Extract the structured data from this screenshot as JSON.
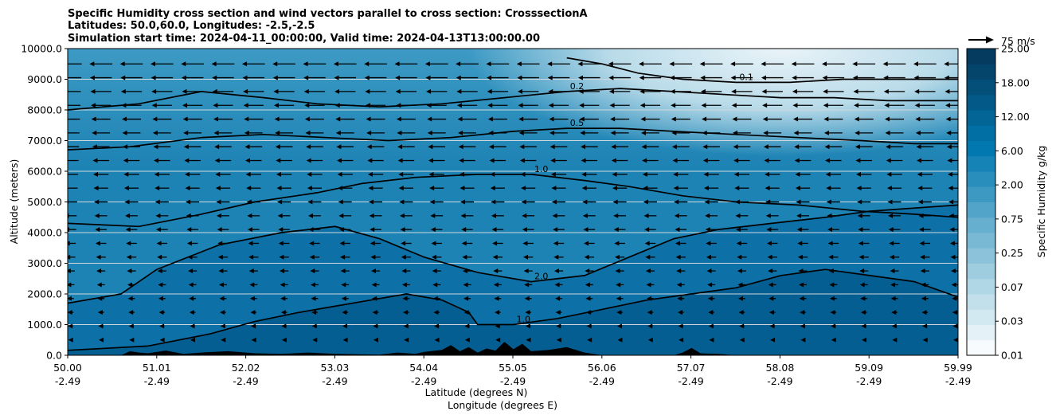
{
  "chart_data": {
    "type": "contour",
    "title_lines": [
      "Specific Humidity cross section and wind vectors parallel to cross section: CrosssectionA",
      "Latitudes: 50.0,60.0, Longitudes: -2.5,-2.5",
      "Simulation start time: 2024-04-11_00:00:00, Valid time: 2024-04-13T13:00:00.00"
    ],
    "xlabel_lines": [
      "Latitude (degrees N)",
      "Longitude (degrees E)"
    ],
    "ylabel": "Altitude (meters)",
    "x_ticks": [
      {
        "lat": "50.00",
        "lon": "-2.49"
      },
      {
        "lat": "51.01",
        "lon": "-2.49"
      },
      {
        "lat": "52.02",
        "lon": "-2.49"
      },
      {
        "lat": "53.03",
        "lon": "-2.49"
      },
      {
        "lat": "54.04",
        "lon": "-2.49"
      },
      {
        "lat": "55.05",
        "lon": "-2.49"
      },
      {
        "lat": "56.06",
        "lon": "-2.49"
      },
      {
        "lat": "57.07",
        "lon": "-2.49"
      },
      {
        "lat": "58.08",
        "lon": "-2.49"
      },
      {
        "lat": "59.09",
        "lon": "-2.49"
      },
      {
        "lat": "59.99",
        "lon": "-2.49"
      }
    ],
    "y_ticks": [
      "0.0",
      "1000.0",
      "2000.0",
      "3000.0",
      "4000.0",
      "5000.0",
      "6000.0",
      "7000.0",
      "8000.0",
      "9000.0",
      "10000.0"
    ],
    "xlim": [
      50.0,
      59.99
    ],
    "ylim": [
      0,
      10000
    ],
    "grid": "horizontal",
    "colorbar": {
      "label": "Specific Humidity g/kg",
      "ticks": [
        "0.01",
        "0.03",
        "0.07",
        "0.25",
        "0.75",
        "2.00",
        "6.00",
        "12.00",
        "18.00",
        "25.00"
      ],
      "n_levels": 20,
      "color_low": "#ffffff",
      "color_high": "#08306b"
    },
    "quiver_key": {
      "label": "75 m/s"
    },
    "contour_lines": [
      {
        "level": "1.0",
        "points": [
          [
            0,
            160
          ],
          [
            900,
            300
          ],
          [
            1600,
            700
          ],
          [
            2100,
            1100
          ],
          [
            2600,
            1400
          ],
          [
            3000,
            1600
          ],
          [
            3400,
            1800
          ],
          [
            3800,
            2000
          ],
          [
            4200,
            1800
          ],
          [
            4500,
            1400
          ],
          [
            4600,
            1000
          ],
          [
            5000,
            1000
          ],
          [
            5500,
            1200
          ],
          [
            6000,
            1500
          ],
          [
            6500,
            1800
          ],
          [
            7000,
            2000
          ],
          [
            7500,
            2200
          ],
          [
            8000,
            2600
          ],
          [
            8500,
            2800
          ],
          [
            9000,
            2600
          ],
          [
            9500,
            2400
          ],
          [
            9990,
            1900
          ]
        ]
      },
      {
        "level": "2.0",
        "points": [
          [
            0,
            1700
          ],
          [
            600,
            2000
          ],
          [
            1000,
            2800
          ],
          [
            1700,
            3600
          ],
          [
            2400,
            4000
          ],
          [
            3000,
            4200
          ],
          [
            3500,
            3800
          ],
          [
            4000,
            3200
          ],
          [
            4600,
            2700
          ],
          [
            5200,
            2400
          ],
          [
            5800,
            2600
          ],
          [
            6300,
            3200
          ],
          [
            6800,
            3800
          ],
          [
            7300,
            4100
          ],
          [
            7900,
            4300
          ],
          [
            8500,
            4500
          ],
          [
            9000,
            4700
          ],
          [
            9500,
            4800
          ],
          [
            9990,
            4900
          ]
        ]
      },
      {
        "level": "1.0",
        "points": [
          [
            0,
            4300
          ],
          [
            800,
            4200
          ],
          [
            1500,
            4600
          ],
          [
            2100,
            5000
          ],
          [
            2800,
            5300
          ],
          [
            3300,
            5600
          ],
          [
            3900,
            5800
          ],
          [
            4600,
            5900
          ],
          [
            5200,
            5900
          ],
          [
            5800,
            5700
          ],
          [
            6300,
            5500
          ],
          [
            6900,
            5200
          ],
          [
            7500,
            5000
          ],
          [
            8200,
            4900
          ],
          [
            8900,
            4700
          ],
          [
            9500,
            4600
          ],
          [
            9990,
            4500
          ]
        ]
      },
      {
        "level": "0.5",
        "points": [
          [
            0,
            6700
          ],
          [
            700,
            6800
          ],
          [
            1500,
            7100
          ],
          [
            2200,
            7200
          ],
          [
            2900,
            7100
          ],
          [
            3600,
            7000
          ],
          [
            4300,
            7100
          ],
          [
            5000,
            7300
          ],
          [
            5600,
            7400
          ],
          [
            6200,
            7400
          ],
          [
            6800,
            7300
          ],
          [
            7500,
            7200
          ],
          [
            8200,
            7100
          ],
          [
            8900,
            7000
          ],
          [
            9500,
            6900
          ],
          [
            9990,
            6900
          ]
        ]
      },
      {
        "level": "0.2",
        "points": [
          [
            0,
            8000
          ],
          [
            800,
            8200
          ],
          [
            1500,
            8600
          ],
          [
            2200,
            8400
          ],
          [
            2800,
            8200
          ],
          [
            3500,
            8100
          ],
          [
            4200,
            8200
          ],
          [
            4900,
            8400
          ],
          [
            5600,
            8600
          ],
          [
            6200,
            8700
          ],
          [
            6800,
            8600
          ],
          [
            7400,
            8500
          ],
          [
            8000,
            8400
          ],
          [
            8600,
            8400
          ],
          [
            9200,
            8300
          ],
          [
            9990,
            8300
          ]
        ]
      },
      {
        "level": "0.1",
        "points": [
          [
            5600,
            9700
          ],
          [
            6000,
            9500
          ],
          [
            6400,
            9200
          ],
          [
            6900,
            9000
          ],
          [
            7500,
            8900
          ],
          [
            8100,
            8900
          ],
          [
            8700,
            9000
          ],
          [
            9300,
            9000
          ],
          [
            9990,
            9000
          ]
        ]
      }
    ]
  }
}
